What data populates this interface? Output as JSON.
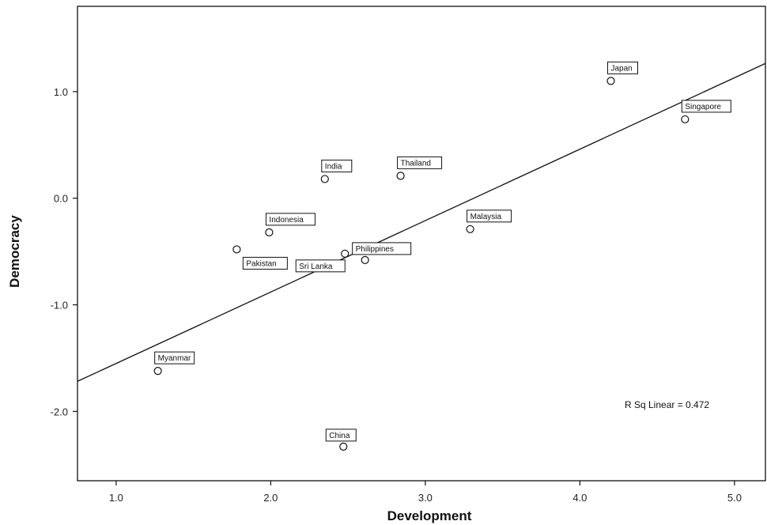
{
  "chart_data": {
    "type": "scatter",
    "title": "",
    "xlabel": "Development",
    "ylabel": "Democracy",
    "xlim": [
      0.75,
      5.2
    ],
    "ylim": [
      -2.65,
      1.8
    ],
    "x_ticks": [
      1.0,
      2.0,
      3.0,
      4.0,
      5.0
    ],
    "x_tick_labels": [
      "1.0",
      "2.0",
      "3.0",
      "4.0",
      "5.0"
    ],
    "y_ticks": [
      1.0,
      0.0,
      -1.0,
      -2.0
    ],
    "y_tick_labels": [
      "1.0",
      "0.0",
      "-1.0",
      "-2.0"
    ],
    "grid": false,
    "points": [
      {
        "label": "Japan",
        "x": 4.2,
        "y": 1.1
      },
      {
        "label": "Singapore",
        "x": 4.68,
        "y": 0.74
      },
      {
        "label": "India",
        "x": 2.35,
        "y": 0.18
      },
      {
        "label": "Thailand",
        "x": 2.84,
        "y": 0.21
      },
      {
        "label": "Indonesia",
        "x": 1.99,
        "y": -0.32
      },
      {
        "label": "Malaysia",
        "x": 3.29,
        "y": -0.29
      },
      {
        "label": "Pakistan",
        "x": 1.78,
        "y": -0.48
      },
      {
        "label": "Philippines",
        "x": 2.61,
        "y": -0.58
      },
      {
        "label": "Sri Lanka",
        "x": 2.48,
        "y": -0.52
      },
      {
        "label": "Myanmar",
        "x": 1.27,
        "y": -1.62
      },
      {
        "label": "China",
        "x": 2.47,
        "y": -2.33
      }
    ],
    "fit_line": {
      "type": "linear",
      "r_squared": 0.472,
      "intercept": -2.22,
      "slope": 0.67
    },
    "annotation": "R Sq Linear = 0.472"
  }
}
